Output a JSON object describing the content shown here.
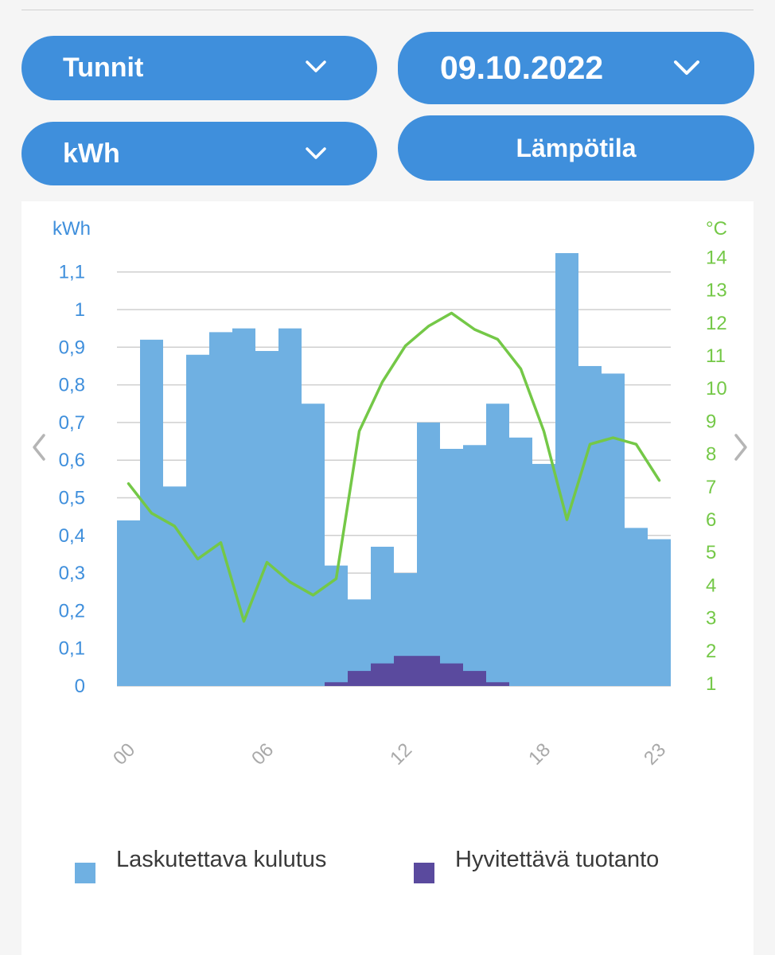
{
  "controls": {
    "period": {
      "label": "Tunnit"
    },
    "date": {
      "label": "09.10.2022"
    },
    "unit": {
      "label": "kWh"
    },
    "temperature_button": {
      "label": "Lämpötila"
    }
  },
  "colors": {
    "accent": "#3f8fdc",
    "consumption": "#6fb0e2",
    "production": "#5a4a9e",
    "temperature": "#74c847",
    "axis_left": "#3f8fdc",
    "axis_right": "#74c847",
    "grid": "#cfcfcf",
    "nav_arrow": "#b5b5b5"
  },
  "chart_data": {
    "type": "bar",
    "title": "",
    "xlabel": "",
    "ylabel": "kWh",
    "y2label": "°C",
    "ylim": [
      0,
      1.1
    ],
    "y2lim": [
      1,
      14
    ],
    "categories": [
      "00",
      "01",
      "02",
      "03",
      "04",
      "05",
      "06",
      "07",
      "08",
      "09",
      "10",
      "11",
      "12",
      "13",
      "14",
      "15",
      "16",
      "17",
      "18",
      "19",
      "20",
      "21",
      "22",
      "23"
    ],
    "x_tick_labels": [
      "00",
      "06",
      "12",
      "18",
      "23"
    ],
    "y_tick_labels": [
      "0",
      "0,1",
      "0,2",
      "0,3",
      "0,4",
      "0,5",
      "0,6",
      "0,7",
      "0,8",
      "0,9",
      "1",
      "1,1"
    ],
    "y2_tick_labels": [
      "1",
      "2",
      "3",
      "4",
      "5",
      "6",
      "7",
      "8",
      "9",
      "10",
      "11",
      "12",
      "13",
      "14"
    ],
    "series": [
      {
        "name": "Laskutettava kulutus",
        "kind": "bar",
        "axis": "left",
        "values": [
          0.44,
          0.92,
          0.53,
          0.88,
          0.94,
          0.95,
          0.89,
          0.95,
          0.75,
          0.32,
          0.23,
          0.37,
          0.3,
          0.7,
          0.63,
          0.64,
          0.75,
          0.66,
          0.59,
          1.15,
          0.85,
          0.83,
          0.42,
          0.39
        ]
      },
      {
        "name": "Hyvitettävä tuotanto",
        "kind": "bar",
        "axis": "left",
        "values": [
          0,
          0,
          0,
          0,
          0,
          0,
          0,
          0,
          0,
          0.01,
          0.04,
          0.06,
          0.08,
          0.08,
          0.06,
          0.04,
          0.01,
          0,
          0,
          0,
          0,
          0,
          0,
          0
        ]
      },
      {
        "name": "Lämpötila",
        "kind": "line",
        "axis": "right",
        "values": [
          7.1,
          6.2,
          5.8,
          4.8,
          5.3,
          2.9,
          4.7,
          4.1,
          3.7,
          4.2,
          8.7,
          10.2,
          11.3,
          11.9,
          12.3,
          11.8,
          11.5,
          10.6,
          8.7,
          6.0,
          8.3,
          8.5,
          8.3,
          7.2
        ]
      }
    ],
    "legend_position": "bottom"
  }
}
